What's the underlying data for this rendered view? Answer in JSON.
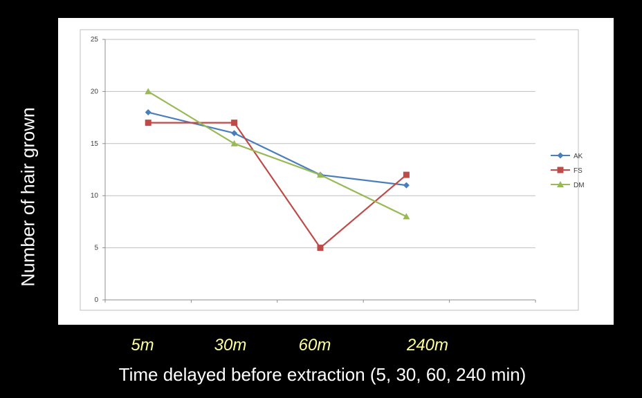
{
  "chart_data": {
    "type": "line",
    "categories": [
      "5m",
      "30m",
      "60m",
      "240m"
    ],
    "series": [
      {
        "name": "AK",
        "values": [
          18,
          16,
          12,
          11
        ],
        "color": "#4a7ebb",
        "marker": "diamond"
      },
      {
        "name": "FS",
        "values": [
          17,
          17,
          5,
          12
        ],
        "color": "#be4b48",
        "marker": "square"
      },
      {
        "name": "DM",
        "values": [
          20,
          15,
          12,
          8
        ],
        "color": "#98b954",
        "marker": "triangle"
      }
    ],
    "yticks": [
      "0",
      "5",
      "10",
      "15",
      "20",
      "25"
    ],
    "ylim": [
      0,
      25
    ],
    "grid": true,
    "legend_position": "right",
    "xlabel": "Time delayed before extraction (5, 30, 60, 240 min)",
    "ylabel": "Number of hair grown"
  }
}
